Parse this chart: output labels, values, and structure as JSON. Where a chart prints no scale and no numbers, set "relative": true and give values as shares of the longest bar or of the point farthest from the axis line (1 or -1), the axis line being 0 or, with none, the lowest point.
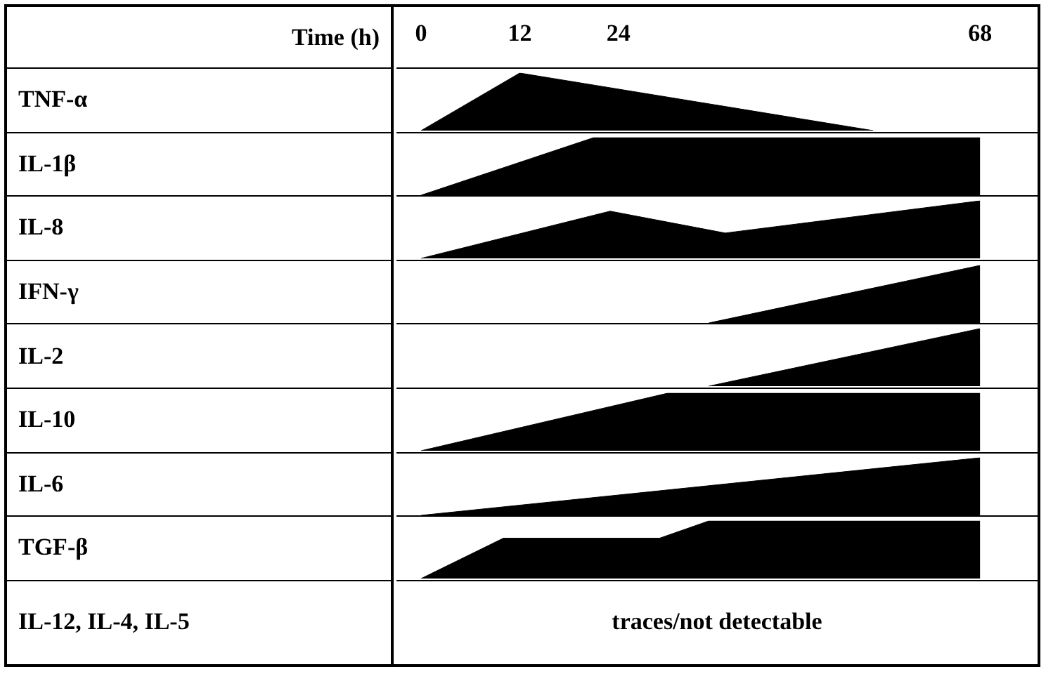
{
  "chart_data": [
    {
      "type": "area",
      "ylabel": "TNF-α",
      "xlabel": "Time (h)",
      "relative": true,
      "color": "#000000",
      "x": [
        0,
        12,
        55
      ],
      "values": [
        0,
        1,
        0
      ],
      "xlim": [
        -3,
        75
      ],
      "xticks": [
        0,
        12,
        24,
        68
      ],
      "tick_labels": "x"
    },
    {
      "type": "area",
      "ylabel": "IL-1β",
      "relative": true,
      "color": "#000000",
      "x": [
        0,
        21,
        68
      ],
      "values": [
        0,
        1,
        1
      ],
      "xlim": [
        -3,
        75
      ],
      "tick_labels": false
    },
    {
      "type": "area",
      "ylabel": "IL-8",
      "relative": true,
      "color": "#000000",
      "x": [
        0,
        23,
        37,
        68
      ],
      "values": [
        0,
        0.82,
        0.44,
        1
      ],
      "xlim": [
        -3,
        75
      ],
      "tick_labels": false
    },
    {
      "type": "area",
      "ylabel": "IFN-γ",
      "relative": true,
      "color": "#000000",
      "x": [
        35,
        68
      ],
      "values": [
        0,
        1
      ],
      "xlim": [
        -3,
        75
      ],
      "tick_labels": false
    },
    {
      "type": "area",
      "ylabel": "IL-2",
      "relative": true,
      "color": "#000000",
      "x": [
        35,
        68
      ],
      "values": [
        0,
        1
      ],
      "xlim": [
        -3,
        75
      ],
      "tick_labels": false
    },
    {
      "type": "area",
      "ylabel": "IL-10",
      "relative": true,
      "color": "#000000",
      "x": [
        0,
        30,
        68
      ],
      "values": [
        0,
        1,
        1
      ],
      "xlim": [
        -3,
        75
      ],
      "tick_labels": false
    },
    {
      "type": "area",
      "ylabel": "IL-6",
      "relative": true,
      "color": "#000000",
      "x": [
        0,
        68
      ],
      "values": [
        0,
        1
      ],
      "xlim": [
        -3,
        75
      ],
      "tick_labels": false
    },
    {
      "type": "area",
      "ylabel": "TGF-β",
      "relative": true,
      "color": "#000000",
      "x": [
        0,
        10,
        29,
        35,
        68
      ],
      "values": [
        0,
        0.7,
        0.7,
        1,
        1
      ],
      "xlim": [
        -3,
        75
      ],
      "tick_labels": false
    },
    {
      "type": "other",
      "ylabel": "IL-12, IL-4, IL-5",
      "annotations": [
        "traces/not detectable"
      ]
    }
  ]
}
